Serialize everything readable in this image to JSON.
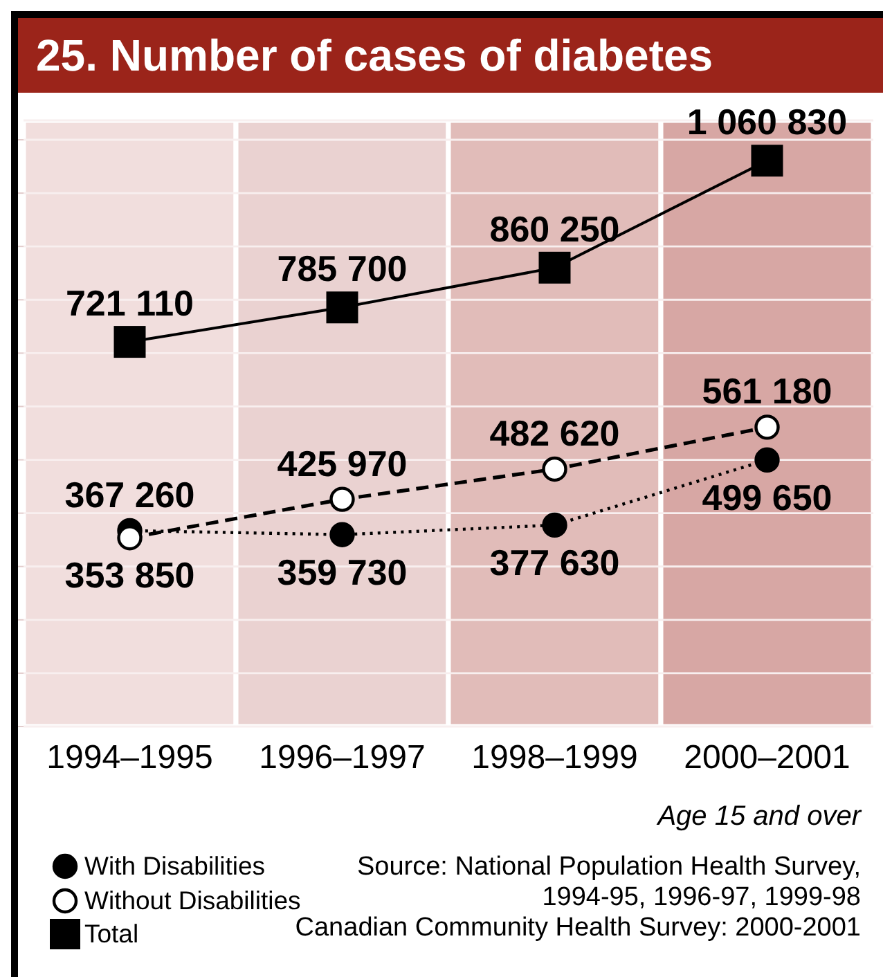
{
  "chart_data": {
    "type": "line",
    "title": "25. Number of cases of diabetes",
    "subtitle": "Age 15 and over",
    "categories": [
      "1994–1995",
      "1996–1997",
      "1998–1999",
      "2000–2001"
    ],
    "series": [
      {
        "name": "With Disabilities",
        "color": "#000000",
        "marker": "circle",
        "line_style": "dotted",
        "values": [
          367260,
          359730,
          377630,
          499650
        ]
      },
      {
        "name": "Without Disabilities",
        "color": "#ffffff",
        "marker": "circle",
        "line_style": "dashed",
        "values": [
          353850,
          425970,
          482620,
          561180
        ]
      },
      {
        "name": "Total",
        "color": "#000000",
        "marker": "square",
        "line_style": "solid",
        "values": [
          721110,
          785700,
          860250,
          1060830
        ]
      }
    ],
    "grid": "y",
    "tick_labels": "x",
    "data_labels": true,
    "legend": "bottom left",
    "bands": [
      {
        "axis": "x",
        "from": "1994–1995",
        "to": "1994–1995",
        "color": "#f1dedd"
      },
      {
        "axis": "x",
        "from": "1996–1997",
        "to": "1996–1997",
        "color": "#ead2d1"
      },
      {
        "axis": "x",
        "from": "1998–1999",
        "to": "1998–1999",
        "color": "#e1bcb9"
      },
      {
        "axis": "x",
        "from": "2000–2001",
        "to": "2000–2001",
        "color": "#d7a7a4"
      }
    ],
    "annotations": [
      "Source: National Population Health Survey, 1994-95, 1996-97, 1999-98",
      "Canadian Community Health Survey: 2000-2001"
    ]
  }
}
